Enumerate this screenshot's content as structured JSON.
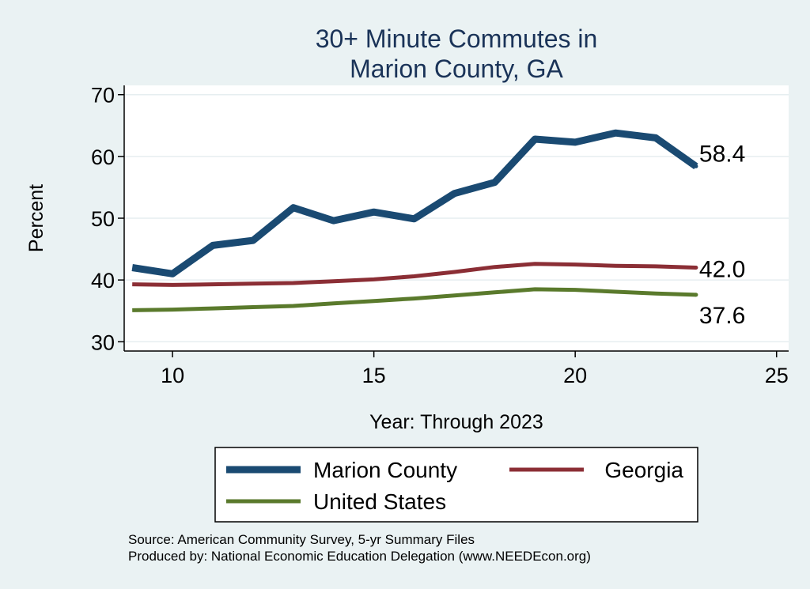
{
  "chart_data": {
    "type": "line",
    "title": [
      "30+ Minute Commutes in",
      "Marion County, GA"
    ],
    "xlabel": "Year: Through 2023",
    "ylabel": "Percent",
    "xlim": [
      8.8,
      25.3
    ],
    "ylim": [
      28.5,
      71.5
    ],
    "xticks": [
      10,
      15,
      20,
      25
    ],
    "yticks": [
      30,
      40,
      50,
      60,
      70
    ],
    "grid": true,
    "legend_position": "bottom",
    "series": [
      {
        "name": "Marion County",
        "color": "#1a4a72",
        "x": [
          9,
          10,
          11,
          12,
          13,
          14,
          15,
          16,
          17,
          18,
          19,
          20,
          21,
          22,
          23
        ],
        "y": [
          42.0,
          41.0,
          45.6,
          46.4,
          51.7,
          49.6,
          51.0,
          49.9,
          54.0,
          55.8,
          62.8,
          62.3,
          63.8,
          63.0,
          58.4
        ],
        "end_label": "58.4"
      },
      {
        "name": "Georgia",
        "color": "#8b2e35",
        "x": [
          9,
          10,
          11,
          12,
          13,
          14,
          15,
          16,
          17,
          18,
          19,
          20,
          21,
          22,
          23
        ],
        "y": [
          39.3,
          39.2,
          39.3,
          39.4,
          39.5,
          39.8,
          40.1,
          40.6,
          41.3,
          42.1,
          42.6,
          42.5,
          42.3,
          42.2,
          42.0
        ],
        "end_label": "42.0"
      },
      {
        "name": "United States",
        "color": "#5a7a2c",
        "x": [
          9,
          10,
          11,
          12,
          13,
          14,
          15,
          16,
          17,
          18,
          19,
          20,
          21,
          22,
          23
        ],
        "y": [
          35.1,
          35.2,
          35.4,
          35.6,
          35.8,
          36.2,
          36.6,
          37.0,
          37.5,
          38.0,
          38.5,
          38.4,
          38.1,
          37.8,
          37.6
        ],
        "end_label": "37.6"
      }
    ],
    "notes": [
      "Source: American Community Survey, 5-yr Summary Files",
      "Produced by: National Economic Education Delegation (www.NEEDEcon.org)"
    ]
  }
}
